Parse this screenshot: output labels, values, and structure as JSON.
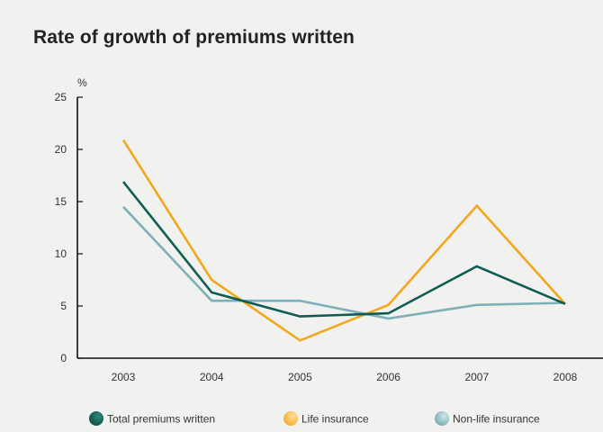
{
  "chart_data": {
    "type": "line",
    "title": "Rate of growth of premiums written",
    "ylabel": "%",
    "xlabel": "",
    "x": [
      "2003",
      "2004",
      "2005",
      "2006",
      "2007",
      "2008"
    ],
    "ylim": [
      0,
      25
    ],
    "yticks": [
      "0",
      "5",
      "10",
      "15",
      "20",
      "25"
    ],
    "grid": false,
    "legend_position": "bottom",
    "series": [
      {
        "name": "Total premiums written",
        "color": "#0e5c52",
        "values": [
          16.9,
          6.3,
          4.0,
          4.3,
          8.8,
          5.2
        ]
      },
      {
        "name": "Life insurance",
        "color": "#f2a81d",
        "values": [
          20.9,
          7.5,
          1.7,
          5.1,
          14.6,
          5.2
        ]
      },
      {
        "name": "Non-life insurance",
        "color": "#7fb0b8",
        "values": [
          14.5,
          5.5,
          5.5,
          3.8,
          5.1,
          5.3
        ]
      }
    ]
  }
}
